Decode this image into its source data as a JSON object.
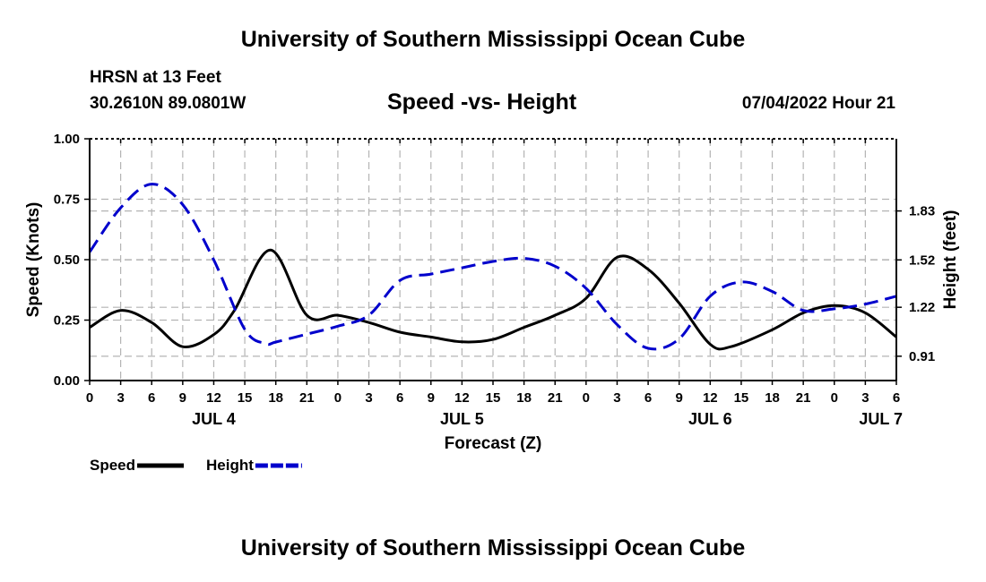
{
  "header": {
    "title": "University of Southern Mississippi Ocean Cube",
    "station": "HRSN at 13 Feet",
    "coords": "30.2610N  89.0801W",
    "subtitle": "Speed -vs- Height",
    "datetime": "07/04/2022 Hour 21",
    "footer_title": "University of Southern Mississippi Ocean Cube"
  },
  "chart_data": {
    "type": "line",
    "title": "Speed -vs- Height",
    "xlabel": "Forecast (Z)",
    "ylabel_left": "Speed (Knots)",
    "ylabel_right": "Height (feet)",
    "x_range_hours": [
      0,
      78
    ],
    "x_tick_labels": [
      "0",
      "3",
      "6",
      "9",
      "12",
      "15",
      "18",
      "21",
      "0",
      "3",
      "6",
      "9",
      "12",
      "15",
      "18",
      "21",
      "0",
      "3",
      "6",
      "9",
      "12",
      "15",
      "18",
      "21",
      "0",
      "3",
      "6"
    ],
    "day_labels": [
      {
        "label": "JUL 4",
        "hour": 12
      },
      {
        "label": "JUL 5",
        "hour": 36
      },
      {
        "label": "JUL 6",
        "hour": 60
      },
      {
        "label": "JUL 7",
        "hour": 76.5
      }
    ],
    "ylim_left": [
      0,
      1.0
    ],
    "yticks_left": [
      "0.00",
      "0.25",
      "0.50",
      "0.75",
      "1.00"
    ],
    "ylim_right": [
      0.756,
      2.287
    ],
    "yticks_right": [
      "0.91",
      "1.22",
      "1.52",
      "1.83"
    ],
    "grid": true,
    "legend_position": "bottom-left",
    "series": [
      {
        "name": "Speed",
        "axis": "left",
        "color": "#000000",
        "dash": "solid",
        "x": [
          0,
          3,
          6,
          9,
          12,
          14,
          17.5,
          21,
          24,
          27,
          30,
          33,
          36,
          39,
          42,
          45,
          48,
          51,
          54,
          57,
          60,
          62,
          66,
          69,
          72,
          75,
          78
        ],
        "y": [
          0.22,
          0.29,
          0.24,
          0.14,
          0.19,
          0.29,
          0.54,
          0.27,
          0.27,
          0.24,
          0.2,
          0.18,
          0.16,
          0.17,
          0.22,
          0.27,
          0.34,
          0.51,
          0.46,
          0.32,
          0.15,
          0.14,
          0.21,
          0.28,
          0.31,
          0.28,
          0.18
        ]
      },
      {
        "name": "Height",
        "axis": "right",
        "color": "#0000cc",
        "dash": "dashed",
        "x": [
          0,
          3,
          6,
          9,
          12,
          15,
          17,
          18,
          21,
          24,
          27,
          30,
          33,
          36,
          39,
          42,
          45,
          48,
          51,
          54,
          57,
          60,
          63,
          66,
          69,
          72,
          75,
          78
        ],
        "y": [
          1.57,
          1.85,
          2.0,
          1.87,
          1.52,
          1.08,
          0.99,
          1.0,
          1.05,
          1.1,
          1.17,
          1.39,
          1.43,
          1.47,
          1.51,
          1.53,
          1.48,
          1.34,
          1.11,
          0.96,
          1.02,
          1.29,
          1.38,
          1.32,
          1.2,
          1.21,
          1.24,
          1.29
        ]
      }
    ]
  }
}
